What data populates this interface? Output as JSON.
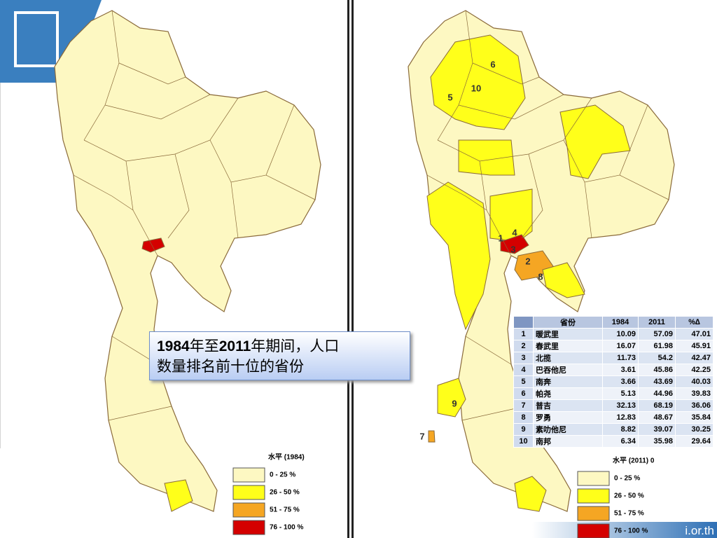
{
  "callout": {
    "parts": [
      "1984",
      "年至",
      "2011",
      "年期间，人口",
      "数量排名前十位的省份"
    ]
  },
  "table": {
    "header": [
      "省份",
      "1984",
      "2011",
      "%∆"
    ],
    "rows": [
      [
        1,
        "暖武里",
        10.09,
        57.09,
        47.01
      ],
      [
        2,
        "春武里",
        16.07,
        61.98,
        45.91
      ],
      [
        3,
        "北揽",
        11.73,
        54.2,
        42.47
      ],
      [
        4,
        "巴吞他尼",
        3.61,
        45.86,
        42.25
      ],
      [
        5,
        "南奔",
        3.66,
        43.69,
        40.03
      ],
      [
        6,
        "帕尧",
        5.13,
        44.96,
        39.83
      ],
      [
        7,
        "普吉",
        32.13,
        68.19,
        36.06
      ],
      [
        8,
        "罗勇",
        12.83,
        48.67,
        35.84
      ],
      [
        9,
        "素叻他尼",
        8.82,
        39.07,
        30.25
      ],
      [
        10,
        "南邦",
        6.34,
        35.98,
        29.64
      ]
    ]
  },
  "legend_1984": {
    "title": "水平 (1984)",
    "items": [
      {
        "label": "0 - 25 %",
        "color": "#fdf8c2"
      },
      {
        "label": "26 - 50 %",
        "color": "#ffff1a"
      },
      {
        "label": "51 - 75 %",
        "color": "#f5a623"
      },
      {
        "label": "76 - 100 %",
        "color": "#d40000"
      }
    ]
  },
  "legend_2011": {
    "title": "水平 (2011) 0",
    "items": [
      {
        "label": "0 - 25 %",
        "color": "#fdf8c2"
      },
      {
        "label": "26 - 50 %",
        "color": "#ffff1a"
      },
      {
        "label": "51 - 75 %",
        "color": "#f5a623"
      },
      {
        "label": "76 - 100 %",
        "color": "#d40000"
      }
    ]
  },
  "map_labels": [
    "1",
    "2",
    "3",
    "4",
    "5",
    "6",
    "7",
    "8",
    "9",
    "10"
  ],
  "footer": "i.or.th"
}
